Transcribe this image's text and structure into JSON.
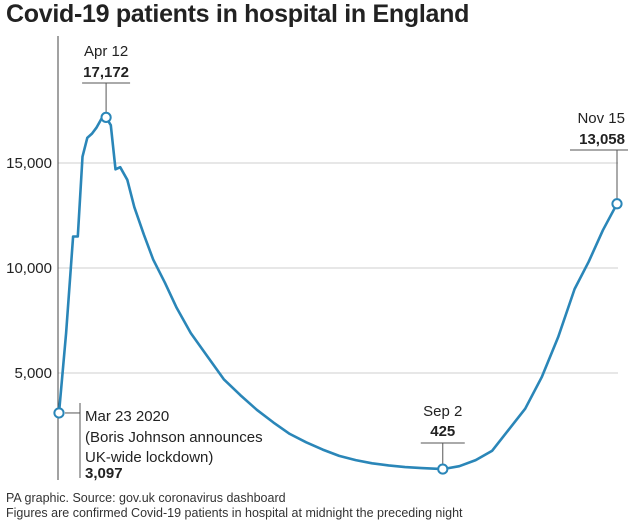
{
  "title": "Covid-19 patients in hospital in England",
  "colors": {
    "series": "#2a86b8",
    "grid": "#cfcfcf",
    "text": "#222222",
    "annotation_line": "#555555"
  },
  "chart_data": {
    "type": "line",
    "title": "Covid-19 patients in hospital in England",
    "xlabel": "",
    "ylabel": "",
    "xlim": [
      "2020-03-23",
      "2020-11-15"
    ],
    "ylim": [
      0,
      18000
    ],
    "yticks": [
      5000,
      10000,
      15000
    ],
    "ytick_labels": [
      "5,000",
      "10,000",
      "15,000"
    ],
    "grid": true,
    "legend": "none",
    "series": [
      {
        "x": [
          "2020-03-23",
          "2020-03-26",
          "2020-03-29",
          "2020-03-31",
          "2020-04-02",
          "2020-04-04",
          "2020-04-06",
          "2020-04-08",
          "2020-04-10",
          "2020-04-12",
          "2020-04-14",
          "2020-04-16",
          "2020-04-18",
          "2020-04-21",
          "2020-04-24",
          "2020-04-28",
          "2020-05-02",
          "2020-05-07",
          "2020-05-12",
          "2020-05-18",
          "2020-05-25",
          "2020-06-01",
          "2020-06-08",
          "2020-06-15",
          "2020-06-22",
          "2020-06-29",
          "2020-07-06",
          "2020-07-13",
          "2020-07-20",
          "2020-07-27",
          "2020-08-03",
          "2020-08-10",
          "2020-08-17",
          "2020-08-24",
          "2020-09-02",
          "2020-09-09",
          "2020-09-16",
          "2020-09-23",
          "2020-09-30",
          "2020-10-07",
          "2020-10-14",
          "2020-10-21",
          "2020-10-28",
          "2020-11-03",
          "2020-11-09",
          "2020-11-15"
        ],
        "y": [
          3097,
          6900,
          11500,
          11500,
          15300,
          16200,
          16400,
          16700,
          17100,
          17172,
          16800,
          14700,
          14800,
          14200,
          12900,
          11600,
          10400,
          9300,
          8100,
          6900,
          5800,
          4700,
          3950,
          3250,
          2650,
          2100,
          1700,
          1350,
          1050,
          850,
          700,
          600,
          520,
          470,
          425,
          560,
          850,
          1300,
          2300,
          3300,
          4800,
          6700,
          9000,
          10300,
          11800,
          13058
        ]
      }
    ],
    "annotations": [
      {
        "date": "2020-04-12",
        "value": 17172,
        "label": "Apr 12",
        "value_label": "17,172"
      },
      {
        "date": "2020-11-15",
        "value": 13058,
        "label": "Nov 15",
        "value_label": "13,058"
      },
      {
        "date": "2020-09-02",
        "value": 425,
        "label": "Sep 2",
        "value_label": "425"
      },
      {
        "date": "2020-03-23",
        "value": 3097,
        "label_lines": [
          "Mar 23 2020",
          "(Boris Johnson announces",
          "UK-wide lockdown)"
        ],
        "value_label": "3,097"
      }
    ]
  },
  "footer": {
    "source": "PA graphic. Source: gov.uk coronavirus dashboard",
    "note": "Figures are confirmed Covid-19 patients in hospital at midnight the preceding night"
  }
}
